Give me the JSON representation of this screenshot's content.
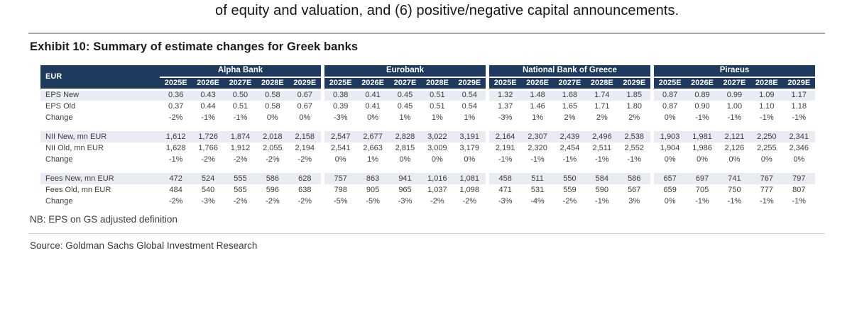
{
  "page": {
    "top_text": "of equity and valuation, and (6) positive/negative capital announcements.",
    "exhibit_title": "Exhibit 10: Summary of estimate changes for Greek banks",
    "note": "NB: EPS on GS adjusted definition",
    "source": "Source: Goldman Sachs Global Investment Research"
  },
  "colors": {
    "header_bg": "#1e3a5f",
    "shaded_row_bg": "#e9ecf3"
  },
  "chart_data": {
    "type": "table",
    "title": "Exhibit 10: Summary of estimate changes for Greek banks",
    "currency_label": "EUR",
    "groups": [
      "Alpha Bank",
      "Eurobank",
      "National Bank of Greece",
      "Piraeus"
    ],
    "year_headers": [
      "2025E",
      "2026E",
      "2027E",
      "2028E",
      "2029E"
    ],
    "rows": [
      {
        "label": "EPS New",
        "shaded": true,
        "values": [
          "0.36",
          "0.43",
          "0.50",
          "0.58",
          "0.67",
          "0.38",
          "0.41",
          "0.45",
          "0.51",
          "0.54",
          "1.32",
          "1.48",
          "1.68",
          "1.74",
          "1.85",
          "0.87",
          "0.89",
          "0.99",
          "1.09",
          "1.17"
        ]
      },
      {
        "label": "EPS Old",
        "shaded": false,
        "values": [
          "0.37",
          "0.44",
          "0.51",
          "0.58",
          "0.67",
          "0.39",
          "0.41",
          "0.45",
          "0.51",
          "0.54",
          "1.37",
          "1.46",
          "1.65",
          "1.71",
          "1.80",
          "0.87",
          "0.90",
          "1.00",
          "1.10",
          "1.18"
        ]
      },
      {
        "label": "Change",
        "shaded": false,
        "values": [
          "-2%",
          "-1%",
          "-1%",
          "0%",
          "0%",
          "-3%",
          "0%",
          "1%",
          "1%",
          "1%",
          "-3%",
          "1%",
          "2%",
          "2%",
          "2%",
          "0%",
          "-1%",
          "-1%",
          "-1%",
          "-1%"
        ]
      },
      {
        "spacer": true
      },
      {
        "label": "NII New, mn EUR",
        "shaded": true,
        "values": [
          "1,612",
          "1,726",
          "1,874",
          "2,018",
          "2,158",
          "2,547",
          "2,677",
          "2,828",
          "3,022",
          "3,191",
          "2,164",
          "2,307",
          "2,439",
          "2,496",
          "2,538",
          "1,903",
          "1,981",
          "2,121",
          "2,250",
          "2,341"
        ]
      },
      {
        "label": "NII Old, mn EUR",
        "shaded": false,
        "values": [
          "1,628",
          "1,766",
          "1,912",
          "2,055",
          "2,194",
          "2,541",
          "2,663",
          "2,815",
          "3,009",
          "3,179",
          "2,191",
          "2,320",
          "2,454",
          "2,511",
          "2,552",
          "1,904",
          "1,986",
          "2,126",
          "2,255",
          "2,346"
        ]
      },
      {
        "label": "Change",
        "shaded": false,
        "values": [
          "-1%",
          "-2%",
          "-2%",
          "-2%",
          "-2%",
          "0%",
          "1%",
          "0%",
          "0%",
          "0%",
          "-1%",
          "-1%",
          "-1%",
          "-1%",
          "-1%",
          "0%",
          "0%",
          "0%",
          "0%",
          "0%"
        ]
      },
      {
        "spacer": true
      },
      {
        "label": "Fees New, mn EUR",
        "shaded": true,
        "values": [
          "472",
          "524",
          "555",
          "586",
          "628",
          "757",
          "863",
          "941",
          "1,016",
          "1,081",
          "458",
          "511",
          "550",
          "584",
          "586",
          "657",
          "697",
          "741",
          "767",
          "797"
        ]
      },
      {
        "label": "Fees Old, mn EUR",
        "shaded": false,
        "values": [
          "484",
          "540",
          "565",
          "596",
          "638",
          "798",
          "905",
          "965",
          "1,037",
          "1,098",
          "471",
          "531",
          "559",
          "590",
          "567",
          "659",
          "705",
          "750",
          "777",
          "807"
        ]
      },
      {
        "label": "Change",
        "shaded": false,
        "values": [
          "-2%",
          "-3%",
          "-2%",
          "-2%",
          "-2%",
          "-5%",
          "-5%",
          "-3%",
          "-2%",
          "-2%",
          "-3%",
          "-4%",
          "-2%",
          "-1%",
          "3%",
          "0%",
          "-1%",
          "-1%",
          "-1%",
          "-1%"
        ]
      }
    ]
  }
}
